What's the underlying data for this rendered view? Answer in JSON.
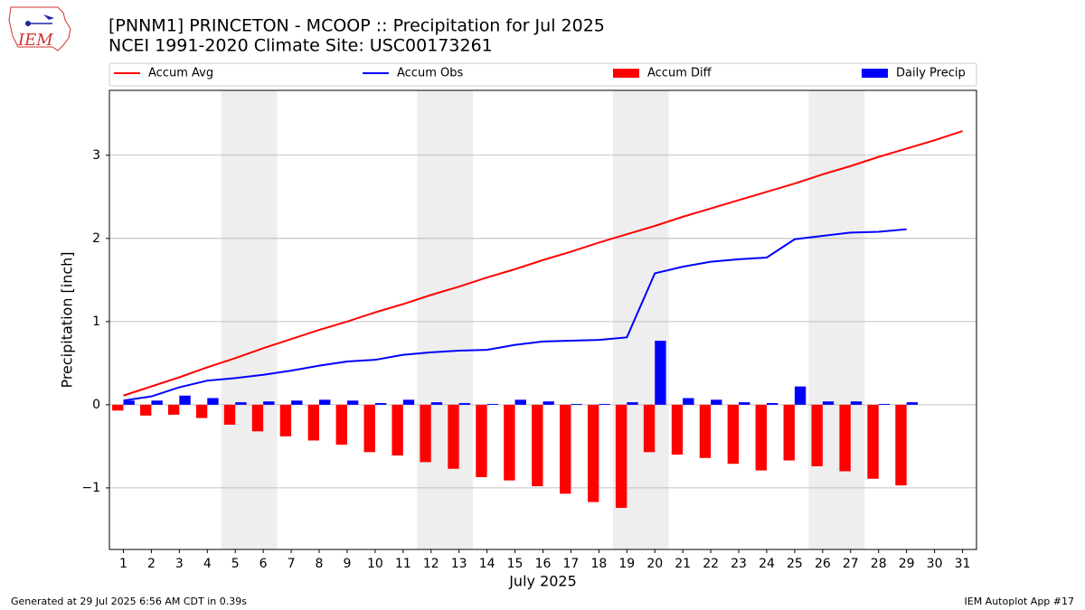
{
  "logo": "IEM",
  "footer_left": "Generated at 29 Jul 2025 6:56 AM CDT in 0.39s",
  "footer_right": "IEM Autoplot App #17",
  "chart_data": {
    "type": "combo",
    "title": "[PNNM1] PRINCETON - MCOOP :: Precipitation for Jul 2025",
    "subtitle": "NCEI 1991-2020 Climate Site: USC00173261",
    "x_label": "July 2025",
    "y_label": "Precipitation [inch]",
    "x": [
      1,
      2,
      3,
      4,
      5,
      6,
      7,
      8,
      9,
      10,
      11,
      12,
      13,
      14,
      15,
      16,
      17,
      18,
      19,
      20,
      21,
      22,
      23,
      24,
      25,
      26,
      27,
      28,
      29,
      30,
      31
    ],
    "xlim": [
      0.5,
      31.5
    ],
    "xticks": [
      1,
      2,
      3,
      4,
      5,
      6,
      7,
      8,
      9,
      10,
      11,
      12,
      13,
      14,
      15,
      16,
      17,
      18,
      19,
      20,
      21,
      22,
      23,
      24,
      25,
      26,
      27,
      28,
      29,
      30,
      31
    ],
    "ylim": [
      -1.74,
      3.78
    ],
    "yticks": [
      {
        "value": -1,
        "label": "−1"
      },
      0,
      1,
      2,
      3
    ],
    "grid": true,
    "legend": "top",
    "highlight_spans": [
      [
        4.5,
        6.5
      ],
      [
        11.5,
        13.5
      ],
      [
        18.5,
        20.5
      ],
      [
        25.5,
        27.5
      ]
    ],
    "highlight_color": "#eeeeee",
    "series": [
      {
        "name": "Accum Avg",
        "kind": "line",
        "color": "#ff0000",
        "values": [
          0.11,
          0.22,
          0.33,
          0.45,
          0.56,
          0.68,
          0.79,
          0.9,
          1.0,
          1.11,
          1.21,
          1.32,
          1.42,
          1.53,
          1.63,
          1.74,
          1.84,
          1.95,
          2.05,
          2.15,
          2.26,
          2.36,
          2.46,
          2.56,
          2.66,
          2.77,
          2.87,
          2.98,
          3.08,
          3.18,
          3.29
        ]
      },
      {
        "name": "Accum Obs",
        "kind": "line",
        "color": "#0000ff",
        "values": [
          0.05,
          0.1,
          0.21,
          0.29,
          0.32,
          0.36,
          0.41,
          0.47,
          0.52,
          0.54,
          0.6,
          0.63,
          0.65,
          0.66,
          0.72,
          0.76,
          0.77,
          0.78,
          0.81,
          1.58,
          1.66,
          1.72,
          1.75,
          1.77,
          1.99,
          2.03,
          2.07,
          2.08,
          2.11,
          null,
          null
        ]
      },
      {
        "name": "Accum Diff",
        "kind": "bar",
        "color": "#ff0000",
        "values": [
          -0.07,
          -0.13,
          -0.12,
          -0.16,
          -0.24,
          -0.32,
          -0.38,
          -0.43,
          -0.48,
          -0.57,
          -0.61,
          -0.69,
          -0.77,
          -0.87,
          -0.91,
          -0.98,
          -1.07,
          -1.17,
          -1.24,
          -0.57,
          -0.6,
          -0.64,
          -0.71,
          -0.79,
          -0.67,
          -0.74,
          -0.8,
          -0.89,
          -0.97,
          null,
          null
        ]
      },
      {
        "name": "Daily Precip",
        "kind": "bar",
        "color": "#0000ff",
        "values": [
          0.05,
          0.05,
          0.11,
          0.08,
          0.03,
          0.04,
          0.05,
          0.06,
          0.05,
          0.02,
          0.06,
          0.03,
          0.02,
          0.01,
          0.06,
          0.04,
          0.01,
          0.01,
          0.03,
          0.77,
          0.08,
          0.06,
          0.03,
          0.02,
          0.22,
          0.04,
          0.04,
          0.01,
          0.03,
          null,
          null
        ]
      }
    ]
  }
}
